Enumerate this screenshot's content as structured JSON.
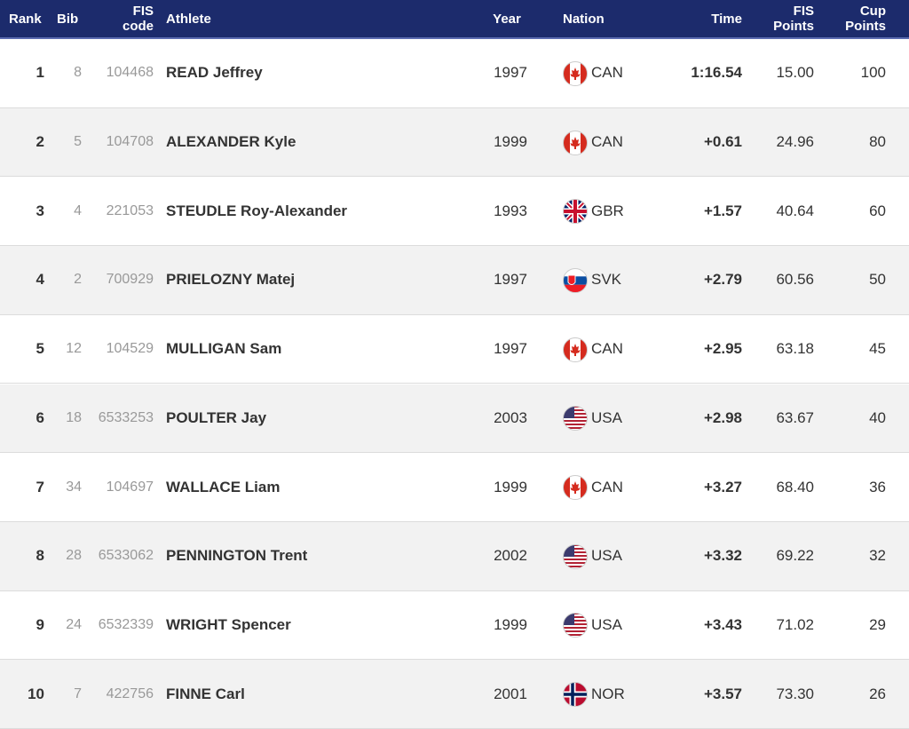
{
  "table": {
    "columns": [
      "Rank",
      "Bib",
      "FIS code",
      "Athlete",
      "Year",
      "Nation",
      "Time",
      "FIS Points",
      "Cup Points"
    ],
    "rows": [
      [
        "1",
        "8",
        "104468",
        "READ Jeffrey",
        "1997",
        "CAN",
        "1:16.54",
        "15.00",
        "100"
      ],
      [
        "2",
        "5",
        "104708",
        "ALEXANDER Kyle",
        "1999",
        "CAN",
        "+0.61",
        "24.96",
        "80"
      ],
      [
        "3",
        "4",
        "221053",
        "STEUDLE Roy-Alexander",
        "1993",
        "GBR",
        "+1.57",
        "40.64",
        "60"
      ],
      [
        "4",
        "2",
        "700929",
        "PRIELOZNY Matej",
        "1997",
        "SVK",
        "+2.79",
        "60.56",
        "50"
      ],
      [
        "5",
        "12",
        "104529",
        "MULLIGAN Sam",
        "1997",
        "CAN",
        "+2.95",
        "63.18",
        "45"
      ],
      [
        "6",
        "18",
        "6533253",
        "POULTER Jay",
        "2003",
        "USA",
        "+2.98",
        "63.67",
        "40"
      ],
      [
        "7",
        "34",
        "104697",
        "WALLACE Liam",
        "1999",
        "CAN",
        "+3.27",
        "68.40",
        "36"
      ],
      [
        "8",
        "28",
        "6533062",
        "PENNINGTON Trent",
        "2002",
        "USA",
        "+3.32",
        "69.22",
        "32"
      ],
      [
        "9",
        "24",
        "6532339",
        "WRIGHT Spencer",
        "1999",
        "USA",
        "+3.43",
        "71.02",
        "29"
      ],
      [
        "10",
        "7",
        "422756",
        "FINNE Carl",
        "2001",
        "NOR",
        "+3.57",
        "73.30",
        "26"
      ]
    ]
  }
}
